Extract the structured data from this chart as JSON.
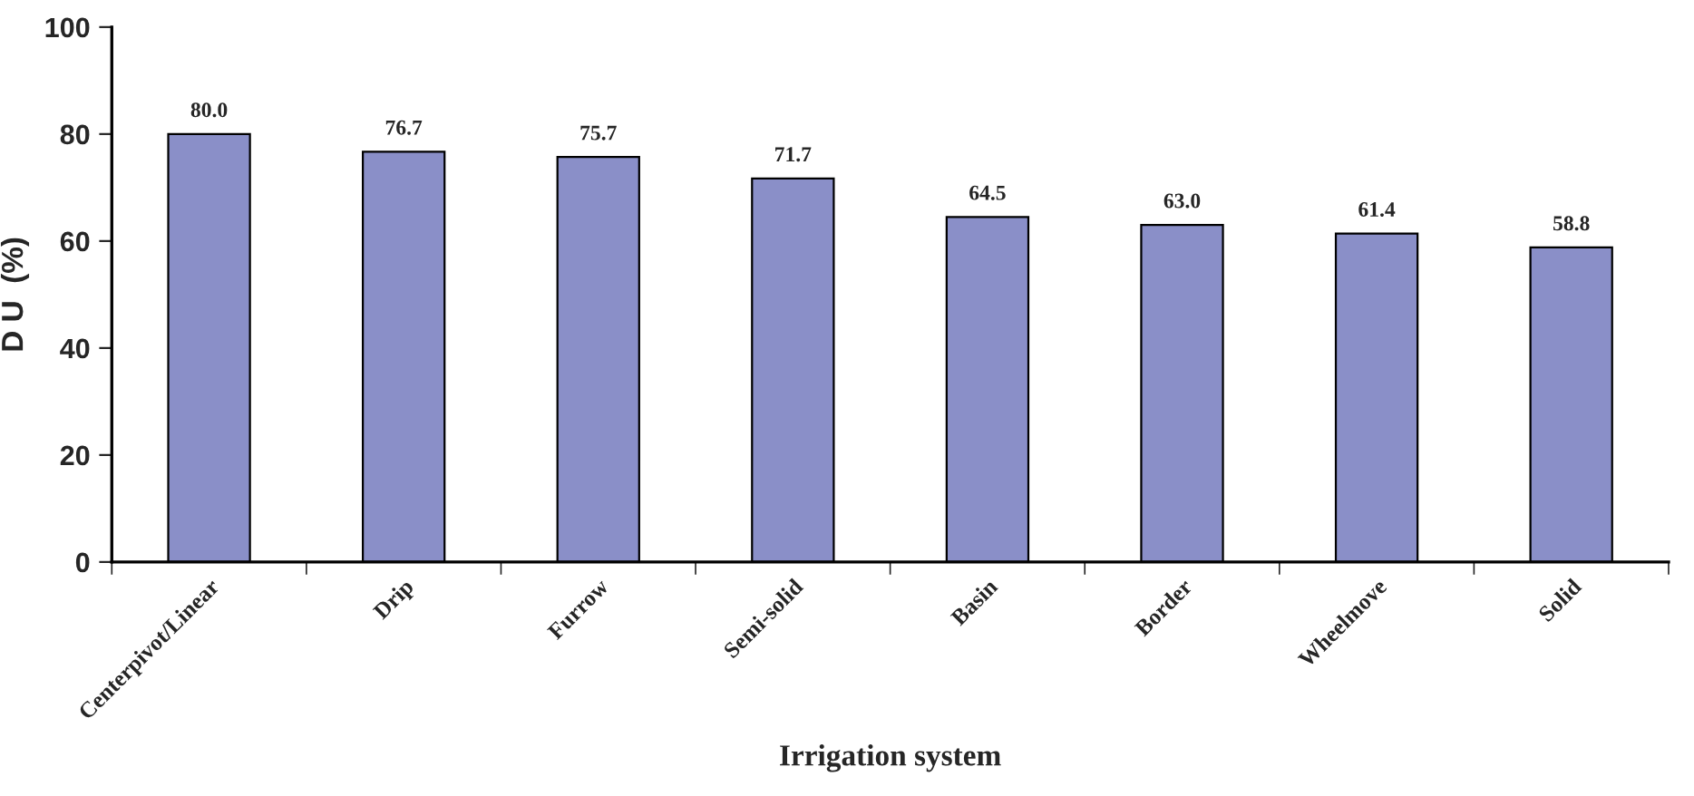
{
  "chart_data": {
    "type": "bar",
    "categories": [
      "Centerpivot/Linear",
      "Drip",
      "Furrow",
      "Semi-solid",
      "Basin",
      "Border",
      "Wheelmove",
      "Solid"
    ],
    "values": [
      80.0,
      76.7,
      75.7,
      71.7,
      64.5,
      63.0,
      61.4,
      58.8
    ],
    "value_labels": [
      "80.0",
      "76.7",
      "75.7",
      "71.7",
      "64.5",
      "63.0",
      "61.4",
      "58.8"
    ],
    "color": "#8a8fc8",
    "xlabel": "Irrigation system",
    "ylabel": "D U  (%)",
    "ylim": [
      0,
      100
    ],
    "yticks": [
      0,
      20,
      40,
      60,
      80,
      100
    ],
    "grid": false,
    "legend": false
  }
}
